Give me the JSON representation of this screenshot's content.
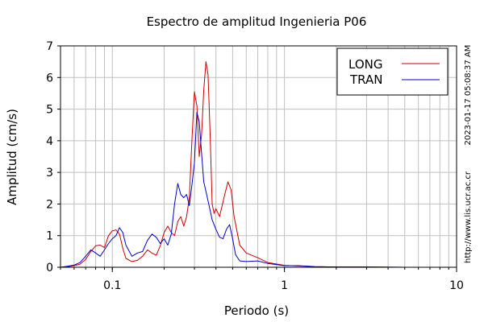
{
  "chart_data": {
    "type": "line",
    "title": "Espectro de amplitud Ingenieria P06",
    "xlabel": "Periodo (s)",
    "ylabel": "Amplitud (cm/s)",
    "x_scale": "log",
    "xlim": [
      0.05,
      10
    ],
    "ylim": [
      0,
      7
    ],
    "x_ticks": [
      {
        "value": 0.1,
        "label": "0.1"
      },
      {
        "value": 1,
        "label": "1"
      },
      {
        "value": 10,
        "label": "10"
      }
    ],
    "y_ticks": [
      {
        "value": 0,
        "label": "0"
      },
      {
        "value": 1,
        "label": "1"
      },
      {
        "value": 2,
        "label": "2"
      },
      {
        "value": 3,
        "label": "3"
      },
      {
        "value": 4,
        "label": "4"
      },
      {
        "value": 5,
        "label": "5"
      },
      {
        "value": 6,
        "label": "6"
      },
      {
        "value": 7,
        "label": "7"
      }
    ],
    "grid": true,
    "legend_position": "top-right",
    "side_labels": {
      "timestamp": "2023-01-17 05:08:37 AM",
      "url": "http://www.lis.ucr.ac.cr"
    },
    "series": [
      {
        "name": "LONG",
        "color": "#cc0000",
        "points": [
          [
            0.05,
            0.0
          ],
          [
            0.055,
            0.02
          ],
          [
            0.06,
            0.05
          ],
          [
            0.065,
            0.1
          ],
          [
            0.07,
            0.25
          ],
          [
            0.075,
            0.5
          ],
          [
            0.08,
            0.68
          ],
          [
            0.085,
            0.7
          ],
          [
            0.09,
            0.62
          ],
          [
            0.095,
            1.0
          ],
          [
            0.1,
            1.15
          ],
          [
            0.105,
            1.18
          ],
          [
            0.11,
            1.05
          ],
          [
            0.115,
            0.6
          ],
          [
            0.12,
            0.28
          ],
          [
            0.13,
            0.18
          ],
          [
            0.14,
            0.22
          ],
          [
            0.15,
            0.35
          ],
          [
            0.16,
            0.55
          ],
          [
            0.17,
            0.45
          ],
          [
            0.18,
            0.38
          ],
          [
            0.19,
            0.68
          ],
          [
            0.2,
            1.1
          ],
          [
            0.21,
            1.3
          ],
          [
            0.22,
            1.1
          ],
          [
            0.23,
            1.0
          ],
          [
            0.24,
            1.45
          ],
          [
            0.25,
            1.6
          ],
          [
            0.26,
            1.3
          ],
          [
            0.27,
            1.6
          ],
          [
            0.28,
            2.2
          ],
          [
            0.29,
            4.0
          ],
          [
            0.3,
            5.55
          ],
          [
            0.31,
            5.1
          ],
          [
            0.32,
            3.5
          ],
          [
            0.33,
            4.2
          ],
          [
            0.34,
            5.6
          ],
          [
            0.35,
            6.5
          ],
          [
            0.36,
            6.1
          ],
          [
            0.37,
            4.2
          ],
          [
            0.38,
            2.0
          ],
          [
            0.39,
            1.7
          ],
          [
            0.4,
            1.85
          ],
          [
            0.42,
            1.6
          ],
          [
            0.45,
            2.3
          ],
          [
            0.47,
            2.7
          ],
          [
            0.49,
            2.45
          ],
          [
            0.51,
            1.6
          ],
          [
            0.55,
            0.7
          ],
          [
            0.6,
            0.45
          ],
          [
            0.7,
            0.3
          ],
          [
            0.8,
            0.15
          ],
          [
            1.0,
            0.06
          ],
          [
            1.2,
            0.04
          ],
          [
            1.5,
            0.02
          ],
          [
            2.0,
            0.01
          ],
          [
            3.0,
            0.01
          ],
          [
            5.0,
            0.0
          ],
          [
            10.0,
            0.0
          ]
        ]
      },
      {
        "name": "TRAN",
        "color": "#0000cc",
        "points": [
          [
            0.05,
            0.0
          ],
          [
            0.055,
            0.03
          ],
          [
            0.06,
            0.07
          ],
          [
            0.065,
            0.15
          ],
          [
            0.07,
            0.35
          ],
          [
            0.075,
            0.55
          ],
          [
            0.08,
            0.45
          ],
          [
            0.085,
            0.35
          ],
          [
            0.09,
            0.55
          ],
          [
            0.095,
            0.75
          ],
          [
            0.1,
            0.9
          ],
          [
            0.105,
            1.0
          ],
          [
            0.11,
            1.25
          ],
          [
            0.115,
            1.1
          ],
          [
            0.12,
            0.7
          ],
          [
            0.13,
            0.35
          ],
          [
            0.14,
            0.45
          ],
          [
            0.15,
            0.5
          ],
          [
            0.16,
            0.85
          ],
          [
            0.17,
            1.05
          ],
          [
            0.18,
            0.95
          ],
          [
            0.19,
            0.75
          ],
          [
            0.2,
            0.9
          ],
          [
            0.21,
            0.7
          ],
          [
            0.22,
            1.05
          ],
          [
            0.23,
            2.0
          ],
          [
            0.24,
            2.65
          ],
          [
            0.25,
            2.3
          ],
          [
            0.26,
            2.2
          ],
          [
            0.27,
            2.3
          ],
          [
            0.28,
            1.95
          ],
          [
            0.29,
            2.6
          ],
          [
            0.3,
            3.3
          ],
          [
            0.31,
            4.9
          ],
          [
            0.32,
            4.6
          ],
          [
            0.33,
            3.6
          ],
          [
            0.34,
            2.7
          ],
          [
            0.35,
            2.4
          ],
          [
            0.36,
            2.1
          ],
          [
            0.37,
            1.8
          ],
          [
            0.38,
            1.5
          ],
          [
            0.4,
            1.2
          ],
          [
            0.42,
            0.95
          ],
          [
            0.44,
            0.9
          ],
          [
            0.46,
            1.2
          ],
          [
            0.48,
            1.35
          ],
          [
            0.5,
            0.9
          ],
          [
            0.52,
            0.4
          ],
          [
            0.55,
            0.2
          ],
          [
            0.6,
            0.18
          ],
          [
            0.7,
            0.2
          ],
          [
            0.8,
            0.12
          ],
          [
            1.0,
            0.05
          ],
          [
            1.2,
            0.05
          ],
          [
            1.5,
            0.02
          ],
          [
            2.0,
            0.01
          ],
          [
            3.0,
            0.01
          ],
          [
            5.0,
            0.0
          ],
          [
            10.0,
            0.0
          ]
        ]
      }
    ]
  }
}
